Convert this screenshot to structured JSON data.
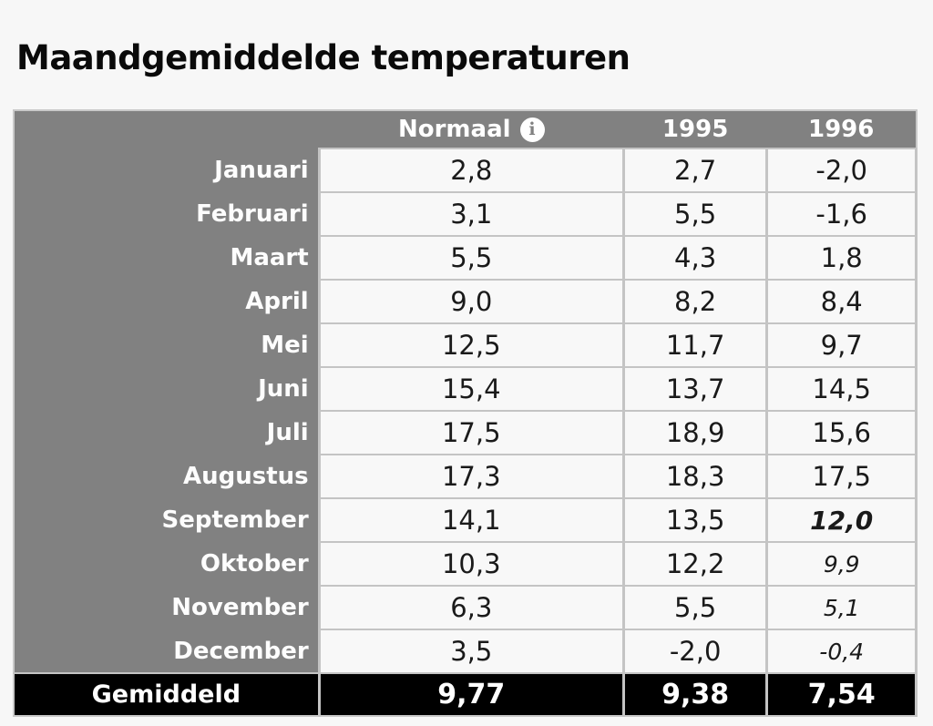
{
  "title": "Maandgemiddelde temperaturen",
  "colors": {
    "page_bg": "#f7f7f7",
    "header_bg": "#818181",
    "cell_bg": "#f8f8f8",
    "border": "#c4c4c4",
    "footer_bg": "#000000",
    "header_text": "#ffffff",
    "cell_text": "#1a1a1a"
  },
  "table": {
    "header": {
      "corner": "",
      "normaal": "Normaal",
      "info_icon": "i",
      "col_1995": "1995",
      "col_1996": "1996"
    },
    "rows": [
      {
        "month": "Januari",
        "normaal": "2,8",
        "y1995": "2,7",
        "y1996": "-2,0"
      },
      {
        "month": "Februari",
        "normaal": "3,1",
        "y1995": "5,5",
        "y1996": "-1,6"
      },
      {
        "month": "Maart",
        "normaal": "5,5",
        "y1995": "4,3",
        "y1996": "1,8"
      },
      {
        "month": "April",
        "normaal": "9,0",
        "y1995": "8,2",
        "y1996": "8,4"
      },
      {
        "month": "Mei",
        "normaal": "12,5",
        "y1995": "11,7",
        "y1996": "9,7"
      },
      {
        "month": "Juni",
        "normaal": "15,4",
        "y1995": "13,7",
        "y1996": "14,5"
      },
      {
        "month": "Juli",
        "normaal": "17,5",
        "y1995": "18,9",
        "y1996": "15,6"
      },
      {
        "month": "Augustus",
        "normaal": "17,3",
        "y1995": "18,3",
        "y1996": "17,5"
      },
      {
        "month": "September",
        "normaal": "14,1",
        "y1995": "13,5",
        "y1996": "12,0",
        "y1996_style": "bold-italic"
      },
      {
        "month": "Oktober",
        "normaal": "10,3",
        "y1995": "12,2",
        "y1996": "9,9",
        "y1996_style": "italic"
      },
      {
        "month": "November",
        "normaal": "6,3",
        "y1995": "5,5",
        "y1996": "5,1",
        "y1996_style": "italic"
      },
      {
        "month": "December",
        "normaal": "3,5",
        "y1995": "-2,0",
        "y1996": "-0,4",
        "y1996_style": "italic"
      }
    ],
    "footer": {
      "label": "Gemiddeld",
      "normaal": "9,77",
      "y1995": "9,38",
      "y1996": "7,54"
    }
  },
  "chart_data": {
    "type": "table",
    "title": "Maandgemiddelde temperaturen",
    "categories": [
      "Januari",
      "Februari",
      "Maart",
      "April",
      "Mei",
      "Juni",
      "Juli",
      "Augustus",
      "September",
      "Oktober",
      "November",
      "December"
    ],
    "series": [
      {
        "name": "Normaal",
        "values": [
          2.8,
          3.1,
          5.5,
          9.0,
          12.5,
          15.4,
          17.5,
          17.3,
          14.1,
          10.3,
          6.3,
          3.5
        ],
        "average": 9.77
      },
      {
        "name": "1995",
        "values": [
          2.7,
          5.5,
          4.3,
          8.2,
          11.7,
          13.7,
          18.9,
          18.3,
          13.5,
          12.2,
          5.5,
          -2.0
        ],
        "average": 9.38
      },
      {
        "name": "1996",
        "values": [
          -2.0,
          -1.6,
          1.8,
          8.4,
          9.7,
          14.5,
          15.6,
          17.5,
          12.0,
          9.9,
          5.1,
          -0.4
        ],
        "average": 7.54
      }
    ],
    "footer_label": "Gemiddeld",
    "notes": "Decimal comma notation; last four 1996 values shown in italic (12,0 bold italic)"
  }
}
